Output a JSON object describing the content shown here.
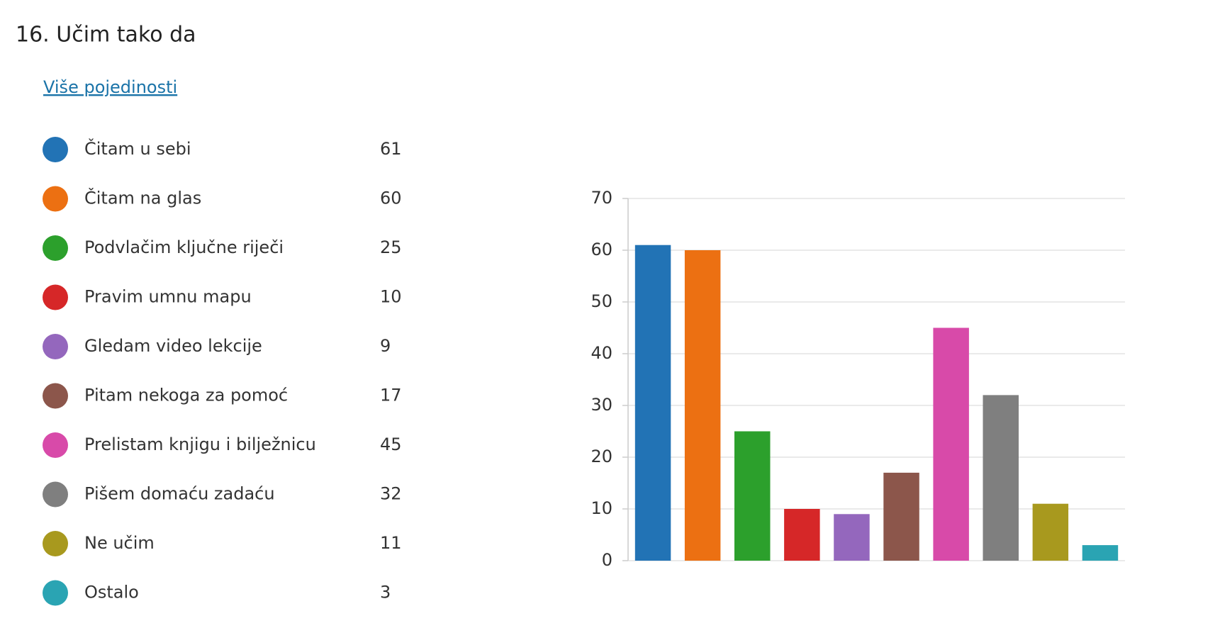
{
  "chart_data": {
    "type": "bar",
    "title": "16.  Učim tako da",
    "link": "Više pojedinosti",
    "categories": [
      "Čitam u sebi",
      "Čitam na glas",
      "Podvlačim ključne riječi",
      "Pravim umnu mapu",
      "Gledam video lekcije",
      "Pitam nekoga za pomoć",
      "Prelistam knjigu i bilježnicu",
      "Pišem domaću zadaću",
      "Ne učim",
      "Ostalo"
    ],
    "values": [
      61,
      60,
      25,
      10,
      9,
      17,
      45,
      32,
      11,
      3
    ],
    "colors": [
      "#2273b5",
      "#ec7012",
      "#2ca02c",
      "#d62728",
      "#9467bd",
      "#8c564b",
      "#d84aa9",
      "#7f7f7f",
      "#a8991e",
      "#2aa4b3"
    ],
    "ylim": [
      0,
      70
    ],
    "yticks": [
      0,
      10,
      20,
      30,
      40,
      50,
      60,
      70
    ],
    "grid": true
  }
}
